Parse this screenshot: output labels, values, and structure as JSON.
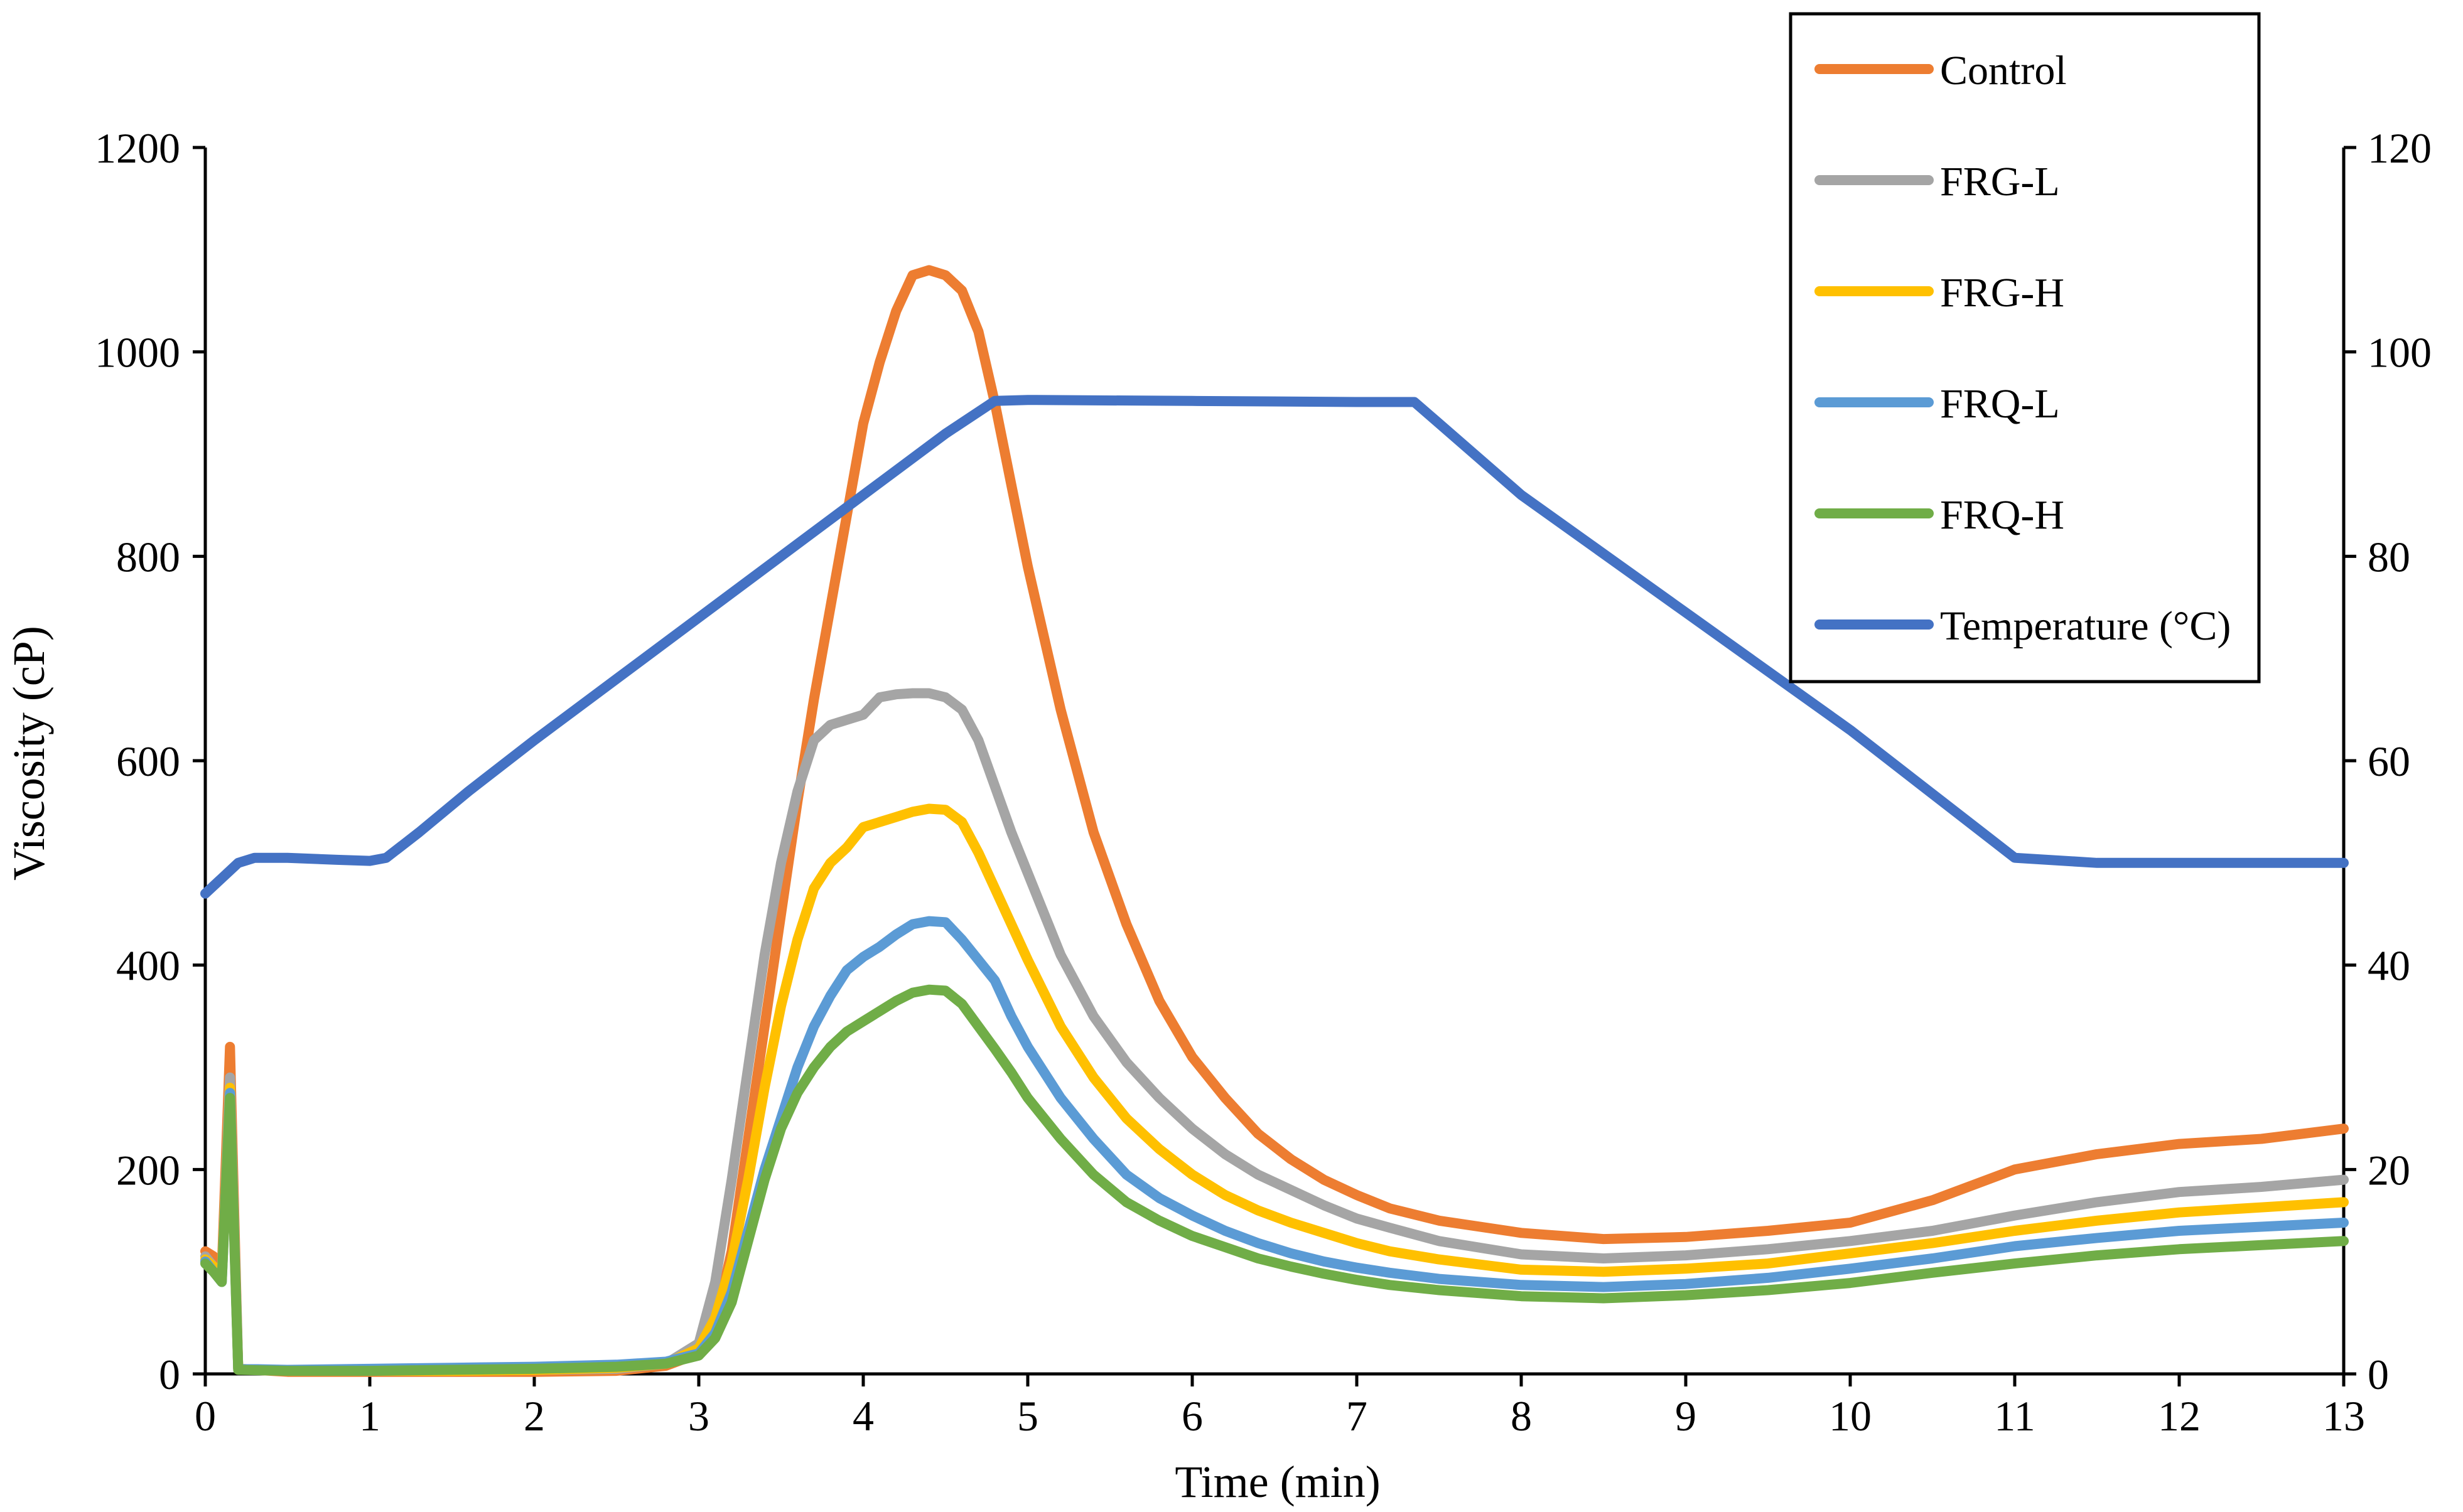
{
  "chart_data": {
    "type": "line",
    "title": "",
    "xlabel": "Time (min)",
    "ylabel": "Viscosity  (cP)",
    "y2label": "",
    "xlim": [
      0,
      13
    ],
    "ylim": [
      0,
      1200
    ],
    "y2lim": [
      0,
      120
    ],
    "xticks": [
      0,
      1,
      2,
      3,
      4,
      5,
      6,
      7,
      8,
      9,
      10,
      11,
      12,
      13
    ],
    "yticks": [
      0,
      200,
      400,
      600,
      800,
      1000,
      1200
    ],
    "y2ticks": [
      0,
      20,
      40,
      60,
      80,
      100,
      120
    ],
    "grid": false,
    "legend_position": "top-right",
    "series": [
      {
        "name": "Control",
        "axis": "left",
        "color": "#ED7D31",
        "x": [
          0,
          0.05,
          0.1,
          0.15,
          0.2,
          0.5,
          1,
          1.5,
          2,
          2.5,
          2.8,
          3,
          3.1,
          3.2,
          3.3,
          3.4,
          3.5,
          3.6,
          3.7,
          3.8,
          3.9,
          4,
          4.1,
          4.2,
          4.3,
          4.4,
          4.5,
          4.6,
          4.7,
          4.8,
          4.9,
          5,
          5.2,
          5.4,
          5.6,
          5.8,
          6,
          6.2,
          6.4,
          6.6,
          6.8,
          7,
          7.2,
          7.5,
          8,
          8.5,
          9,
          9.5,
          10,
          10.5,
          11,
          11.5,
          12,
          12.5,
          13
        ],
        "values": [
          120,
          115,
          100,
          320,
          5,
          2,
          2,
          2,
          2,
          3,
          8,
          20,
          50,
          120,
          230,
          340,
          450,
          560,
          660,
          750,
          840,
          930,
          990,
          1040,
          1075,
          1080,
          1075,
          1060,
          1020,
          950,
          870,
          790,
          650,
          530,
          440,
          365,
          310,
          270,
          235,
          210,
          190,
          175,
          162,
          150,
          138,
          132,
          134,
          140,
          148,
          170,
          200,
          215,
          225,
          230,
          240
        ]
      },
      {
        "name": "FRG-L",
        "axis": "left",
        "color": "#A5A5A5",
        "x": [
          0,
          0.05,
          0.1,
          0.15,
          0.2,
          0.5,
          1,
          1.5,
          2,
          2.5,
          2.8,
          3,
          3.1,
          3.2,
          3.3,
          3.4,
          3.5,
          3.6,
          3.7,
          3.8,
          3.9,
          4,
          4.1,
          4.2,
          4.3,
          4.4,
          4.5,
          4.6,
          4.7,
          4.8,
          4.9,
          5,
          5.2,
          5.4,
          5.6,
          5.8,
          6,
          6.2,
          6.4,
          6.6,
          6.8,
          7,
          7.2,
          7.5,
          8,
          8.5,
          9,
          9.5,
          10,
          10.5,
          11,
          11.5,
          12,
          12.5,
          13
        ],
        "values": [
          115,
          105,
          95,
          290,
          5,
          3,
          3,
          3,
          4,
          5,
          10,
          30,
          90,
          190,
          300,
          410,
          500,
          570,
          620,
          635,
          640,
          645,
          662,
          665,
          666,
          666,
          662,
          650,
          620,
          575,
          530,
          490,
          410,
          350,
          305,
          270,
          240,
          215,
          195,
          180,
          165,
          152,
          143,
          130,
          117,
          113,
          116,
          122,
          130,
          140,
          155,
          168,
          178,
          183,
          190
        ]
      },
      {
        "name": "FRG-H",
        "axis": "left",
        "color": "#FFC000",
        "x": [
          0,
          0.05,
          0.1,
          0.15,
          0.2,
          0.5,
          1,
          1.5,
          2,
          2.5,
          2.8,
          3,
          3.1,
          3.2,
          3.3,
          3.4,
          3.5,
          3.6,
          3.7,
          3.8,
          3.9,
          4,
          4.1,
          4.2,
          4.3,
          4.4,
          4.5,
          4.6,
          4.7,
          4.8,
          4.9,
          5,
          5.2,
          5.4,
          5.6,
          5.8,
          6,
          6.2,
          6.4,
          6.6,
          6.8,
          7,
          7.2,
          7.5,
          8,
          8.5,
          9,
          9.5,
          10,
          10.5,
          11,
          11.5,
          12,
          12.5,
          13
        ],
        "values": [
          112,
          105,
          95,
          280,
          5,
          3,
          3,
          3,
          4,
          6,
          10,
          25,
          55,
          110,
          190,
          280,
          360,
          425,
          475,
          500,
          515,
          535,
          540,
          545,
          550,
          553,
          552,
          540,
          510,
          475,
          440,
          405,
          340,
          290,
          250,
          220,
          195,
          175,
          160,
          148,
          138,
          128,
          120,
          112,
          102,
          100,
          103,
          108,
          118,
          128,
          140,
          150,
          158,
          163,
          168
        ]
      },
      {
        "name": "FRQ-L",
        "axis": "left",
        "color": "#5B9BD5",
        "x": [
          0,
          0.05,
          0.1,
          0.15,
          0.2,
          0.5,
          1,
          1.5,
          2,
          2.5,
          2.8,
          3,
          3.1,
          3.2,
          3.3,
          3.4,
          3.5,
          3.6,
          3.7,
          3.8,
          3.9,
          4,
          4.1,
          4.2,
          4.3,
          4.4,
          4.5,
          4.6,
          4.7,
          4.8,
          4.9,
          5,
          5.2,
          5.4,
          5.6,
          5.8,
          6,
          6.2,
          6.4,
          6.6,
          6.8,
          7,
          7.2,
          7.5,
          8,
          8.5,
          9,
          9.5,
          10,
          10.5,
          11,
          11.5,
          12,
          12.5,
          13
        ],
        "values": [
          110,
          100,
          90,
          275,
          5,
          4,
          5,
          6,
          7,
          9,
          12,
          20,
          40,
          80,
          140,
          200,
          250,
          300,
          340,
          370,
          395,
          408,
          418,
          430,
          440,
          443,
          442,
          425,
          405,
          385,
          350,
          320,
          270,
          230,
          195,
          172,
          155,
          140,
          128,
          118,
          110,
          104,
          99,
          93,
          87,
          85,
          88,
          94,
          103,
          113,
          125,
          133,
          140,
          144,
          148
        ]
      },
      {
        "name": "FRQ-H",
        "axis": "left",
        "color": "#70AD47",
        "x": [
          0,
          0.05,
          0.1,
          0.15,
          0.2,
          0.5,
          1,
          1.5,
          2,
          2.5,
          2.8,
          3,
          3.1,
          3.2,
          3.3,
          3.4,
          3.5,
          3.6,
          3.7,
          3.8,
          3.9,
          4,
          4.1,
          4.2,
          4.3,
          4.4,
          4.5,
          4.6,
          4.7,
          4.8,
          4.9,
          5,
          5.2,
          5.4,
          5.6,
          5.8,
          6,
          6.2,
          6.4,
          6.6,
          6.8,
          7,
          7.2,
          7.5,
          8,
          8.5,
          9,
          9.5,
          10,
          10.5,
          11,
          11.5,
          12,
          12.5,
          13
        ],
        "values": [
          108,
          100,
          90,
          270,
          4,
          3,
          3,
          4,
          5,
          7,
          10,
          18,
          35,
          70,
          130,
          190,
          240,
          275,
          300,
          320,
          335,
          345,
          355,
          365,
          373,
          376,
          375,
          362,
          340,
          318,
          295,
          270,
          230,
          195,
          168,
          150,
          135,
          124,
          113,
          105,
          98,
          92,
          87,
          82,
          76,
          74,
          77,
          82,
          89,
          99,
          108,
          116,
          122,
          126,
          130
        ]
      },
      {
        "name": "Temperature (°C)",
        "axis": "right",
        "color": "#4472C4",
        "x": [
          0,
          0.1,
          0.2,
          0.3,
          0.5,
          0.8,
          1.0,
          1.1,
          1.3,
          1.6,
          2.0,
          2.5,
          3.0,
          3.5,
          4.0,
          4.5,
          4.8,
          5.0,
          6.0,
          7.0,
          7.35,
          7.5,
          8.0,
          9.0,
          10.0,
          11.0,
          11.5,
          12.0,
          12.5,
          13.0
        ],
        "values": [
          47,
          48.5,
          50,
          50.5,
          50.5,
          50.3,
          50.2,
          50.5,
          53,
          57,
          62,
          68,
          74,
          80,
          86,
          92,
          95.2,
          95.3,
          95.2,
          95.1,
          95.1,
          93,
          86,
          74.5,
          63,
          50.5,
          50,
          50,
          50,
          50
        ]
      }
    ]
  }
}
